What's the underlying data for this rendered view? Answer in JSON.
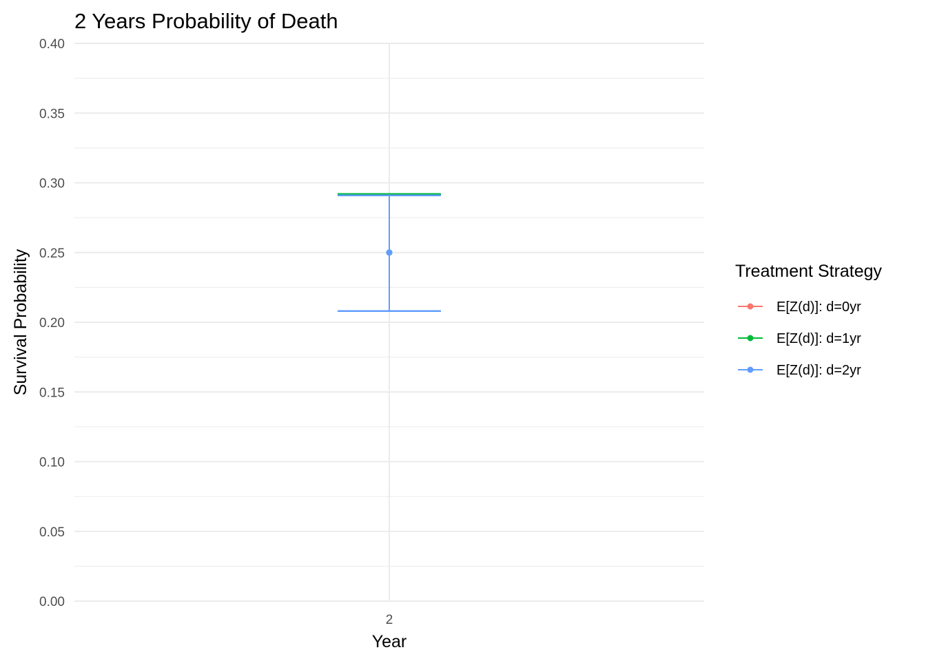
{
  "chart_data": {
    "type": "errorbar",
    "title": "2 Years Probability of Death",
    "xlabel": "Year",
    "ylabel": "Survival Probability",
    "x_categories": [
      "2"
    ],
    "ylim": [
      0,
      0.4
    ],
    "y_ticks": [
      "0.00",
      "0.05",
      "0.10",
      "0.15",
      "0.20",
      "0.25",
      "0.30",
      "0.35",
      "0.40"
    ],
    "grid": true,
    "legend": {
      "title": "Treatment Strategy",
      "position": "right"
    },
    "series": [
      {
        "name": "E[Z(d)]: d=0yr",
        "color": "#F8766D",
        "x": "2",
        "y": 0.25,
        "ymin": 0.208,
        "ymax": 0.292
      },
      {
        "name": "E[Z(d)]: d=1yr",
        "color": "#00BA38",
        "x": "2",
        "y": 0.25,
        "ymin": 0.208,
        "ymax": 0.292
      },
      {
        "name": "E[Z(d)]: d=2yr",
        "color": "#619CFF",
        "x": "2",
        "y": 0.25,
        "ymin": 0.208,
        "ymax": 0.291
      }
    ]
  }
}
